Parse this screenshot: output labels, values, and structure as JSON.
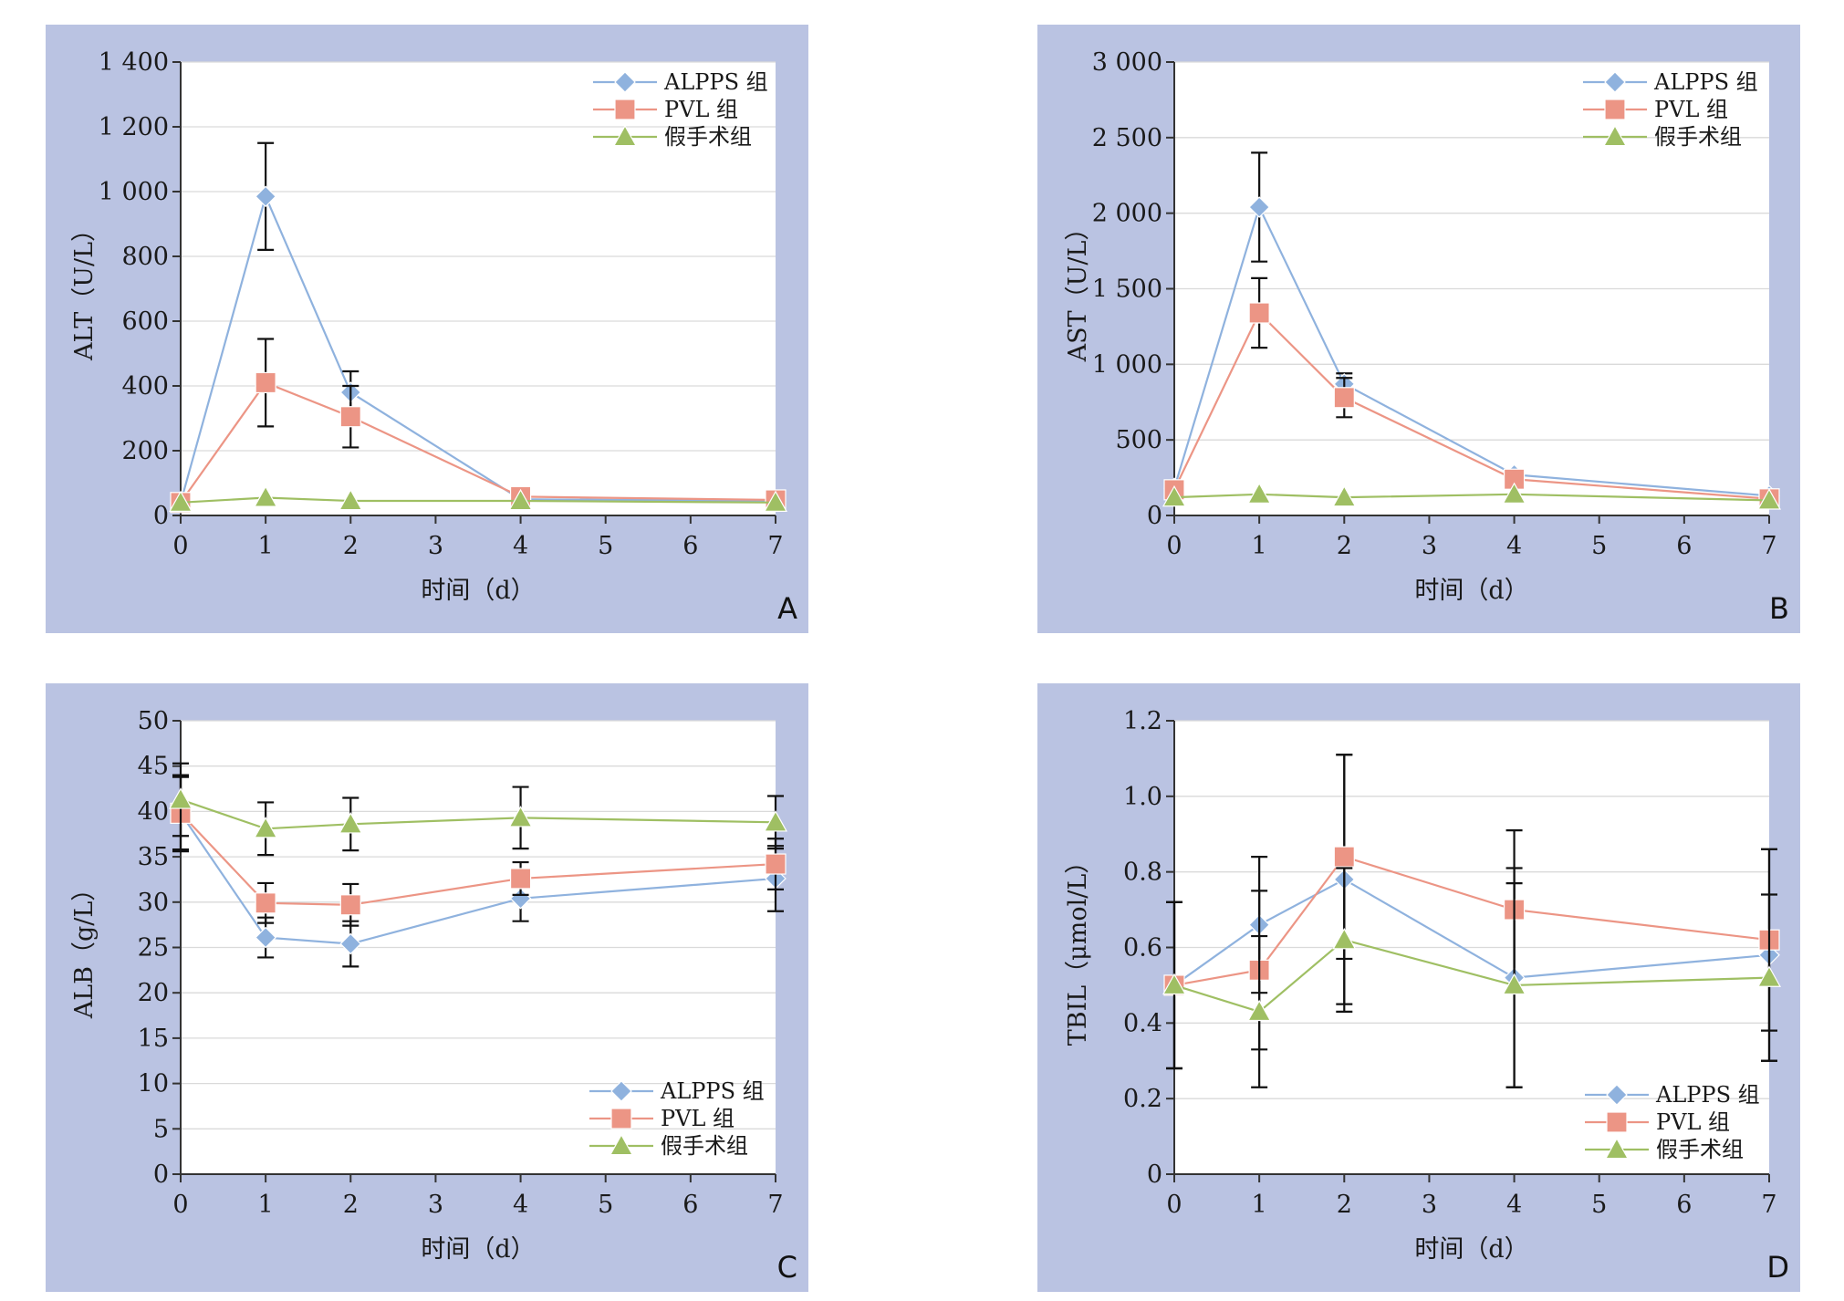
{
  "colors": {
    "panel_bg": "#bac3e2",
    "plot_bg": "#ffffff",
    "ALPPS": "#8fb2de",
    "PVL": "#ec9585",
    "sham": "#9fbf63"
  },
  "chart_data": [
    {
      "panel": "A",
      "type": "line",
      "xlabel": "时间（d）",
      "ylabel": "ALT（U/L）",
      "x": [
        0,
        1,
        2,
        4,
        7
      ],
      "xlim": [
        0,
        7
      ],
      "xticks": [
        "0",
        "1",
        "2",
        "3",
        "4",
        "5",
        "6",
        "7"
      ],
      "ylim": [
        0,
        1400
      ],
      "yticks": [
        0,
        200,
        400,
        600,
        800,
        1000,
        1200,
        1400
      ],
      "ytick_labels": [
        "0",
        "200",
        "400",
        "600",
        "800",
        "1 000",
        "1 200",
        "1 400"
      ],
      "grid": true,
      "legend_position": "top-right",
      "series": [
        {
          "name": "ALPPS 组",
          "marker": "diamond",
          "values": [
            40,
            985,
            380,
            50,
            45
          ],
          "errors": [
            0,
            165,
            65,
            0,
            0
          ]
        },
        {
          "name": "PVL 组",
          "marker": "square",
          "values": [
            40,
            410,
            305,
            58,
            48
          ],
          "errors": [
            0,
            135,
            95,
            0,
            0
          ]
        },
        {
          "name": "假手术组",
          "marker": "triangle",
          "values": [
            40,
            55,
            45,
            45,
            40
          ],
          "errors": [
            0,
            0,
            0,
            0,
            0
          ]
        }
      ]
    },
    {
      "panel": "B",
      "type": "line",
      "xlabel": "时间（d）",
      "ylabel": "AST（U/L）",
      "x": [
        0,
        1,
        2,
        4,
        7
      ],
      "xlim": [
        0,
        7
      ],
      "xticks": [
        "0",
        "1",
        "2",
        "3",
        "4",
        "5",
        "6",
        "7"
      ],
      "ylim": [
        0,
        3000
      ],
      "yticks": [
        0,
        500,
        1000,
        1500,
        2000,
        2500,
        3000
      ],
      "ytick_labels": [
        "0",
        "500",
        "1 000",
        "1 500",
        "2 000",
        "2 500",
        "3 000"
      ],
      "grid": true,
      "legend_position": "top-right",
      "series": [
        {
          "name": "ALPPS 组",
          "marker": "diamond",
          "values": [
            180,
            2040,
            870,
            270,
            130
          ],
          "errors": [
            0,
            360,
            70,
            0,
            0
          ]
        },
        {
          "name": "PVL 组",
          "marker": "square",
          "values": [
            170,
            1340,
            780,
            240,
            110
          ],
          "errors": [
            0,
            230,
            130,
            0,
            0
          ]
        },
        {
          "name": "假手术组",
          "marker": "triangle",
          "values": [
            120,
            140,
            120,
            140,
            100
          ],
          "errors": [
            0,
            0,
            0,
            0,
            0
          ]
        }
      ]
    },
    {
      "panel": "C",
      "type": "line",
      "xlabel": "时间（d）",
      "ylabel": "ALB（g/L）",
      "x": [
        0,
        1,
        2,
        4,
        7
      ],
      "xlim": [
        0,
        7
      ],
      "xticks": [
        "0",
        "1",
        "2",
        "3",
        "4",
        "5",
        "6",
        "7"
      ],
      "ylim": [
        0,
        50
      ],
      "yticks": [
        0,
        5,
        10,
        15,
        20,
        25,
        30,
        35,
        40,
        45,
        50
      ],
      "ytick_labels": [
        "0",
        "5",
        "10",
        "15",
        "20",
        "25",
        "30",
        "35",
        "40",
        "45",
        "50"
      ],
      "grid": true,
      "legend_position": "bottom-right",
      "series": [
        {
          "name": "ALPPS 组",
          "marker": "diamond",
          "values": [
            39.8,
            26.1,
            25.4,
            30.4,
            32.6
          ],
          "errors": [
            4.0,
            2.2,
            2.5,
            2.5,
            3.6
          ]
        },
        {
          "name": "PVL 组",
          "marker": "square",
          "values": [
            39.8,
            29.9,
            29.7,
            32.6,
            34.2
          ],
          "errors": [
            4.2,
            2.2,
            2.3,
            1.8,
            2.8
          ]
        },
        {
          "name": "假手术组",
          "marker": "triangle",
          "values": [
            41.3,
            38.1,
            38.6,
            39.3,
            38.8
          ],
          "errors": [
            4.0,
            2.9,
            2.9,
            3.4,
            2.9
          ]
        }
      ]
    },
    {
      "panel": "D",
      "type": "line",
      "xlabel": "时间（d）",
      "ylabel": "TBIL（μmol/L）",
      "x": [
        0,
        1,
        2,
        4,
        7
      ],
      "xlim": [
        0,
        7
      ],
      "xticks": [
        "0",
        "1",
        "2",
        "3",
        "4",
        "5",
        "6",
        "7"
      ],
      "ylim": [
        0,
        1.2
      ],
      "yticks": [
        0,
        0.2,
        0.4,
        0.6,
        0.8,
        1.0,
        1.2
      ],
      "ytick_labels": [
        "0",
        "0.2",
        "0.4",
        "0.6",
        "0.8",
        "1.0",
        "1.2"
      ],
      "grid": true,
      "legend_position": "bottom-right",
      "series": [
        {
          "name": "ALPPS 组",
          "marker": "diamond",
          "values": [
            0.5,
            0.66,
            0.78,
            0.52,
            0.58
          ],
          "errors": [
            0.22,
            0.18,
            0.33,
            0.29,
            0.28
          ]
        },
        {
          "name": "PVL 组",
          "marker": "square",
          "values": [
            0.5,
            0.54,
            0.84,
            0.7,
            0.62
          ],
          "errors": [
            0.22,
            0.21,
            0.27,
            0.21,
            0.24
          ]
        },
        {
          "name": "假手术组",
          "marker": "triangle",
          "values": [
            0.5,
            0.43,
            0.62,
            0.5,
            0.52
          ],
          "errors": [
            0.22,
            0.2,
            0.19,
            0.27,
            0.22
          ]
        }
      ]
    }
  ]
}
